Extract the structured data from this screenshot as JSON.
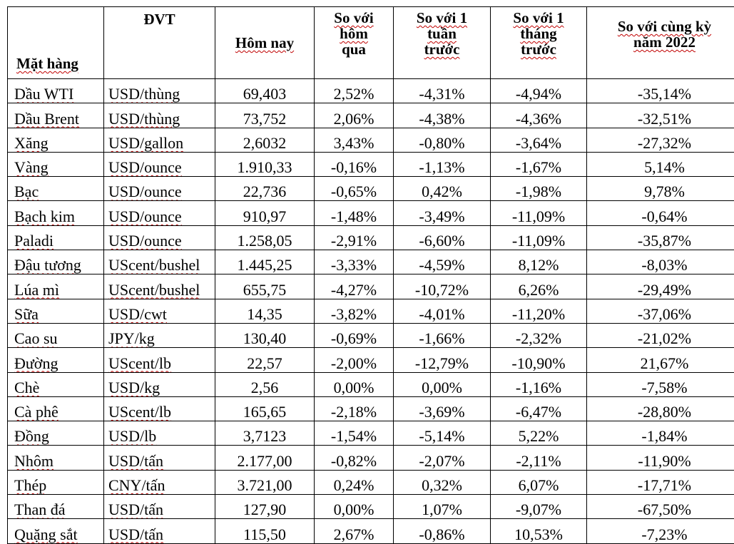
{
  "headers": {
    "item": "Mặt hàng",
    "unit": "ĐVT",
    "today": "Hôm nay",
    "vs_yesterday": [
      "So với",
      "hôm",
      "qua"
    ],
    "vs_week": [
      "So với 1",
      "tuần",
      "trước"
    ],
    "vs_month": [
      "So với 1",
      "tháng",
      "trước"
    ],
    "vs_year": [
      "So với cùng kỳ",
      "năm 2022"
    ]
  },
  "rows": [
    {
      "item": "Dầu WTI",
      "unit": "USD/thùng",
      "today": "69,403",
      "d": "2,52%",
      "w": "-4,31%",
      "m": "-4,94%",
      "y": "-35,14%"
    },
    {
      "item": "Dầu Brent",
      "unit": "USD/thùng",
      "today": "73,752",
      "d": "2,06%",
      "w": "-4,38%",
      "m": "-4,36%",
      "y": "-32,51%"
    },
    {
      "item": "Xăng",
      "unit": "USD/gallon",
      "today": "2,6032",
      "d": "3,43%",
      "w": "-0,80%",
      "m": "-3,64%",
      "y": "-27,32%"
    },
    {
      "item": "Vàng",
      "unit": "USD/ounce",
      "today": "1.910,33",
      "d": "-0,16%",
      "w": "-1,13%",
      "m": "-1,67%",
      "y": "5,14%"
    },
    {
      "item": "Bạc",
      "unit": "USD/ounce",
      "today": "22,736",
      "d": "-0,65%",
      "w": "0,42%",
      "m": "-1,98%",
      "y": "9,78%"
    },
    {
      "item": "Bạch kim",
      "unit": "USD/ounce",
      "today": "910,97",
      "d": "-1,48%",
      "w": "-3,49%",
      "m": "-11,09%",
      "y": "-0,64%"
    },
    {
      "item": "Paladi",
      "unit": "USD/ounce",
      "today": "1.258,05",
      "d": "-2,91%",
      "w": "-6,60%",
      "m": "-11,09%",
      "y": "-35,87%"
    },
    {
      "item": "Đậu tương",
      "unit": "UScent/bushel",
      "today": "1.445,25",
      "d": "-3,33%",
      "w": "-4,59%",
      "m": "8,12%",
      "y": "-8,03%"
    },
    {
      "item": "Lúa mì",
      "unit": "UScent/bushel",
      "today": "655,75",
      "d": "-4,27%",
      "w": "-10,72%",
      "m": "6,26%",
      "y": "-29,49%"
    },
    {
      "item": "Sữa",
      "unit": "USD/cwt",
      "today": "14,35",
      "d": "-3,82%",
      "w": "-4,01%",
      "m": "-11,20%",
      "y": "-37,06%"
    },
    {
      "item": "Cao su",
      "unit": "JPY/kg",
      "today": "130,40",
      "d": "-0,69%",
      "w": "-1,66%",
      "m": "-2,32%",
      "y": "-21,02%"
    },
    {
      "item": "Đường",
      "unit": "UScent/lb",
      "today": "22,57",
      "d": "-2,00%",
      "w": "-12,79%",
      "m": "-10,90%",
      "y": "21,67%"
    },
    {
      "item": "Chè",
      "unit": "USD/kg",
      "today": "2,56",
      "d": "0,00%",
      "w": "0,00%",
      "m": "-1,16%",
      "y": "-7,58%"
    },
    {
      "item": "Cà phê",
      "unit": "UScent/lb",
      "today": "165,65",
      "d": "-2,18%",
      "w": "-3,69%",
      "m": "-6,47%",
      "y": "-28,80%"
    },
    {
      "item": "Đồng",
      "unit": "USD/lb",
      "today": "3,7123",
      "d": "-1,54%",
      "w": "-5,14%",
      "m": "5,22%",
      "y": "-1,84%"
    },
    {
      "item": "Nhôm",
      "unit": "USD/tấn",
      "today": "2.177,00",
      "d": "-0,82%",
      "w": "-2,07%",
      "m": "-2,11%",
      "y": "-11,90%"
    },
    {
      "item": "Thép",
      "unit": "CNY/tấn",
      "today": "3.721,00",
      "d": "0,24%",
      "w": "0,32%",
      "m": "6,07%",
      "y": "-17,71%"
    },
    {
      "item": "Than đá",
      "unit": "USD/tấn",
      "today": "127,90",
      "d": "0,00%",
      "w": "1,07%",
      "m": "-9,07%",
      "y": "-67,50%"
    },
    {
      "item": "Quặng sắt",
      "unit": "USD/tấn",
      "today": "115,50",
      "d": "2,67%",
      "w": "-0,86%",
      "m": "10,53%",
      "y": "-7,23%"
    }
  ]
}
